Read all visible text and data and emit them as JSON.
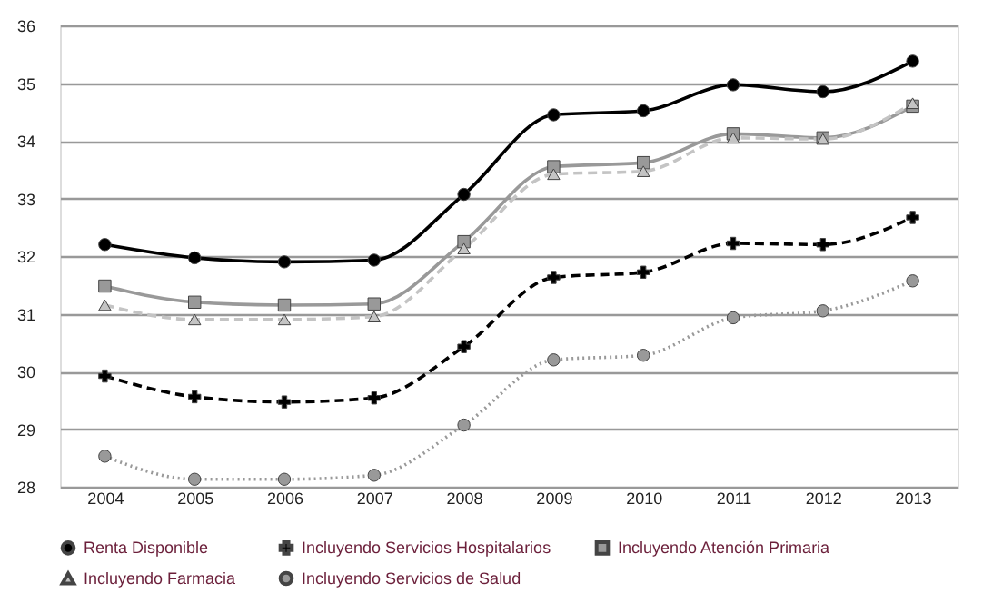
{
  "chart_data": {
    "type": "line",
    "categories": [
      "2004",
      "2005",
      "2006",
      "2007",
      "2008",
      "2009",
      "2010",
      "2011",
      "2012",
      "2013"
    ],
    "ylim": [
      28,
      36
    ],
    "yticks": [
      28,
      29,
      30,
      31,
      32,
      33,
      34,
      35,
      36
    ],
    "grid": "y",
    "legend": "bottom",
    "series": [
      {
        "name": "Renta Disponible",
        "color": "#000000",
        "marker": "circle",
        "line_style": "solid",
        "values": [
          32.2,
          31.97,
          31.9,
          31.93,
          33.07,
          34.45,
          34.52,
          34.97,
          34.85,
          35.38
        ]
      },
      {
        "name": "Incluyendo Servicios Hospitalarios",
        "color": "#000000",
        "marker": "cross",
        "line_style": "dashed",
        "values": [
          29.92,
          29.56,
          29.47,
          29.54,
          30.43,
          31.63,
          31.72,
          32.22,
          32.2,
          32.67
        ]
      },
      {
        "name": "Incluyendo Atención Primaria",
        "color": "#999999",
        "marker": "square",
        "line_style": "solid",
        "values": [
          31.48,
          31.2,
          31.15,
          31.17,
          32.25,
          33.55,
          33.62,
          34.12,
          34.05,
          34.6
        ]
      },
      {
        "name": "Incluyendo Farmacia",
        "color": "#c4c4c4",
        "marker": "triangle",
        "line_style": "dashed",
        "values": [
          31.15,
          30.9,
          30.9,
          30.95,
          32.13,
          33.42,
          33.47,
          34.05,
          34.03,
          34.65
        ]
      },
      {
        "name": "Incluyendo Servicios de Salud",
        "color": "#999999",
        "marker": "circle",
        "line_style": "dotted",
        "values": [
          28.53,
          28.13,
          28.13,
          28.2,
          29.07,
          30.2,
          30.28,
          30.93,
          31.05,
          31.57
        ]
      }
    ]
  }
}
